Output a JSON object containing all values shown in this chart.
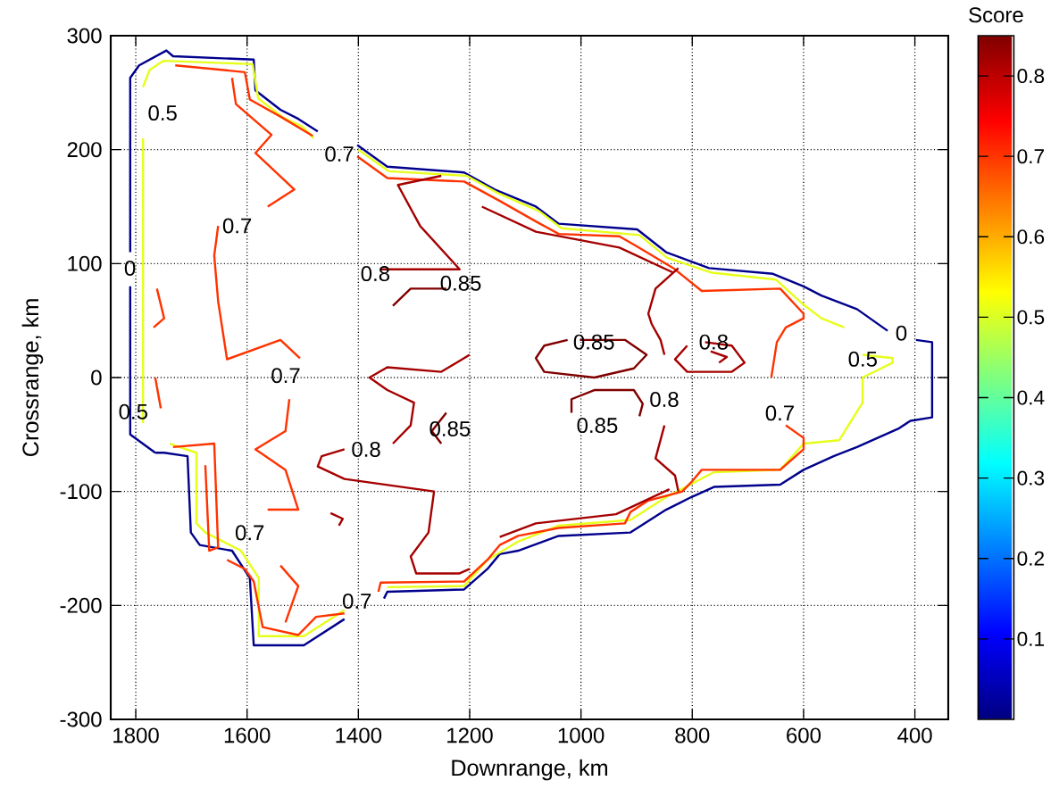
{
  "chart_data": {
    "type": "line",
    "xlabel": "Downrange, km",
    "ylabel": "Crossrange, km",
    "clabel": "Score",
    "clim": [
      0,
      0.85
    ],
    "cticks": [
      0.1,
      0.2,
      0.3,
      0.4,
      0.5,
      0.6,
      0.7,
      0.8
    ],
    "xlim": [
      1845,
      340
    ],
    "ylim": [
      -300,
      300
    ],
    "xticks": [
      1800,
      1600,
      1400,
      1200,
      1000,
      800,
      600,
      400
    ],
    "yticks": [
      -300,
      -200,
      -100,
      0,
      100,
      200,
      300
    ],
    "grid": true,
    "series": [
      {
        "color": "#00008c",
        "x": [
          1765,
          1810,
          1810
        ],
        "values": [
          -66,
          -50,
          80
        ]
      },
      {
        "color": "#00008c",
        "x": [
          1810,
          1810,
          1794,
          1745,
          1733,
          1588,
          1585,
          1540,
          1508,
          1473
        ],
        "values": [
          110,
          263,
          274,
          287,
          282,
          279,
          252,
          235,
          227,
          216
        ]
      },
      {
        "color": "#00008c",
        "x": [
          1402,
          1348,
          1210,
          1155,
          1081,
          1040,
          899,
          847,
          770,
          655,
          600,
          568,
          504,
          449
        ],
        "values": [
          204,
          185,
          180,
          165,
          150,
          135,
          130,
          110,
          96,
          91,
          80,
          72,
          60,
          41
        ]
      },
      {
        "color": "#00008c",
        "x": [
          398,
          369,
          369,
          408,
          430,
          504,
          546,
          600,
          642,
          761,
          802,
          847,
          911,
          1040,
          1113,
          1146,
          1168,
          1210,
          1348,
          1354
        ],
        "values": [
          33,
          31,
          -35,
          -38,
          -45,
          -61,
          -69,
          -81,
          -94,
          -96,
          -105,
          -116,
          -136,
          -139,
          -152,
          -155,
          -168,
          -186,
          -188,
          -194
        ]
      },
      {
        "color": "#00008c",
        "x": [
          1425,
          1498,
          1588,
          1595,
          1627,
          1685,
          1701,
          1707,
          1749,
          1765
        ],
        "values": [
          -212,
          -235,
          -235,
          -176,
          -152,
          -147,
          -136,
          -69,
          -66,
          -66
        ]
      },
      {
        "color": "#e6ff1a",
        "x": [
          1787,
          1787
        ],
        "values": [
          -40,
          210
        ]
      },
      {
        "color": "#e6ff1a",
        "x": [
          1787,
          1775,
          1750,
          1590,
          1580,
          1535,
          1500,
          1480
        ],
        "values": [
          255,
          270,
          278,
          275,
          245,
          228,
          220,
          210
        ]
      },
      {
        "color": "#e6ff1a",
        "x": [
          1400,
          1345,
          1205,
          1150,
          1075,
          1035,
          895,
          845,
          765,
          650,
          600,
          568,
          527
        ],
        "values": [
          200,
          181,
          177,
          162,
          146,
          131,
          125,
          105,
          92,
          86,
          64,
          52,
          44
        ]
      },
      {
        "color": "#e6ff1a",
        "x": [
          494,
          440,
          440,
          494,
          494,
          536,
          600,
          642,
          761,
          847,
          911,
          1040,
          1113,
          1168,
          1210,
          1348
        ],
        "values": [
          20,
          17,
          13,
          0,
          -22,
          -55,
          -58,
          -81,
          -83,
          -105,
          -125,
          -130,
          -144,
          -160,
          -183,
          -184
        ]
      },
      {
        "color": "#e6ff1a",
        "x": [
          1425,
          1498,
          1579,
          1579,
          1611,
          1675,
          1691,
          1691,
          1739
        ],
        "values": [
          -204,
          -227,
          -227,
          -176,
          -152,
          -136,
          -128,
          -66,
          -58
        ]
      },
      {
        "color": "#ff3300",
        "x": [
          1729,
          1604,
          1595,
          1540,
          1482
        ],
        "values": [
          274,
          268,
          244,
          229,
          212
        ]
      },
      {
        "color": "#ff3300",
        "x": [
          1627,
          1620,
          1556,
          1585,
          1515,
          1563
        ],
        "values": [
          263,
          240,
          213,
          197,
          165,
          150
        ]
      },
      {
        "color": "#ff3300",
        "x": [
          1652,
          1659,
          1652,
          1636,
          1540,
          1505
        ],
        "values": [
          133,
          107,
          67,
          16,
          33,
          17
        ]
      },
      {
        "color": "#ff3300",
        "x": [
          1524,
          1531,
          1585,
          1531,
          1508,
          1563
        ],
        "values": [
          -19,
          -47,
          -63,
          -81,
          -116,
          -116
        ]
      },
      {
        "color": "#ff3300",
        "x": [
          1765,
          1755
        ],
        "values": [
          0,
          -27
        ]
      },
      {
        "color": "#ff3300",
        "x": [
          1733,
          1659,
          1652,
          1668,
          1675
        ],
        "values": [
          -61,
          -58,
          -149,
          -152,
          -77
        ]
      },
      {
        "color": "#ff3300",
        "x": [
          1540,
          1508,
          1531
        ],
        "values": [
          -165,
          -183,
          -215
        ]
      },
      {
        "color": "#ff3300",
        "x": [
          1762,
          1749,
          1768
        ],
        "values": [
          78,
          52,
          44
        ]
      },
      {
        "color": "#ff3300",
        "x": [
          1402,
          1348,
          1210,
          1146,
          1081,
          1040,
          931,
          899,
          834,
          783,
          642,
          600,
          600,
          632,
          648,
          658
        ],
        "values": [
          194,
          175,
          172,
          155,
          137,
          126,
          124,
          115,
          96,
          76,
          78,
          56,
          52,
          44,
          31,
          0
        ]
      },
      {
        "color": "#ff3300",
        "x": [
          632,
          600,
          600,
          642,
          783,
          802,
          818,
          879,
          911,
          921,
          1040,
          1113,
          1146,
          1168,
          1210,
          1360,
          1364
        ],
        "values": [
          -42,
          -53,
          -63,
          -81,
          -81,
          -92,
          -100,
          -108,
          -118,
          -128,
          -132,
          -139,
          -147,
          -160,
          -179,
          -180,
          -188
        ]
      },
      {
        "color": "#ff3300",
        "x": [
          1425,
          1476,
          1508,
          1572,
          1588,
          1604,
          1636
        ],
        "values": [
          -207,
          -210,
          -226,
          -219,
          -179,
          -168,
          -160
        ]
      },
      {
        "color": "#a50000",
        "x": [
          1361,
          1218,
          1289,
          1329,
          1251
        ],
        "values": [
          95,
          95,
          133,
          169,
          177
        ]
      },
      {
        "color": "#a50000",
        "x": [
          1200,
          1251,
          1348,
          1380,
          1348,
          1300,
          1306,
          1338
        ],
        "values": [
          20,
          5,
          9,
          0,
          -11,
          -22,
          -42,
          -58
        ]
      },
      {
        "color": "#a50000",
        "x": [
          1425,
          1466,
          1473,
          1425,
          1264,
          1274,
          1306,
          1296,
          1219,
          1200
        ],
        "values": [
          -63,
          -69,
          -78,
          -89,
          -100,
          -136,
          -157,
          -172,
          -172,
          -168
        ]
      },
      {
        "color": "#a50000",
        "x": [
          1450,
          1428,
          1435
        ],
        "values": [
          -119,
          -124,
          -130
        ]
      },
      {
        "color": "#a50000",
        "x": [
          825,
          866,
          879,
          873,
          857,
          850
        ],
        "values": [
          96,
          78,
          56,
          47,
          33,
          20
        ]
      },
      {
        "color": "#a50000",
        "x": [
          850,
          866,
          831,
          825
        ],
        "values": [
          -42,
          -71,
          -86,
          -100
        ]
      },
      {
        "color": "#a50000",
        "x": [
          777,
          729,
          706,
          729,
          809,
          831,
          809
        ],
        "values": [
          31,
          28,
          13,
          5,
          5,
          16,
          28
        ]
      },
      {
        "color": "#a50000",
        "x": [
          767,
          738,
          752
        ],
        "values": [
          23,
          18,
          13
        ]
      },
      {
        "color": "#a50000",
        "x": [
          1178,
          1081,
          931,
          834
        ],
        "values": [
          150,
          128,
          114,
          92
        ]
      },
      {
        "color": "#a50000",
        "x": [
          1146,
          1081,
          937,
          841
        ],
        "values": [
          -140,
          -128,
          -120,
          -98
        ]
      },
      {
        "color": "#800000",
        "x": [
          1338,
          1306,
          1242
        ],
        "values": [
          63,
          78,
          78
        ]
      },
      {
        "color": "#800000",
        "x": [
          1242,
          1268,
          1251
        ],
        "values": [
          -31,
          -47,
          -58
        ]
      },
      {
        "color": "#800000",
        "x": [
          1002,
          921,
          882,
          905,
          976,
          1066,
          1081,
          1066,
          1024
        ],
        "values": [
          33,
          33,
          20,
          8,
          0,
          5,
          17,
          28,
          33
        ]
      },
      {
        "color": "#800000",
        "x": [
          1017,
          1017,
          976,
          905,
          889,
          895
        ],
        "values": [
          -31,
          -19,
          -11,
          -11,
          -23,
          -34
        ]
      }
    ],
    "annotations": [
      "0.5",
      "0.7",
      "0.7",
      "0",
      "0.8",
      "0.85",
      "0.85",
      "0.8",
      "0.5",
      "0",
      "0.7",
      "0.8",
      "0.7",
      "0.5",
      "0.8",
      "0.85",
      "0.85",
      "0.7",
      "0.7"
    ]
  }
}
